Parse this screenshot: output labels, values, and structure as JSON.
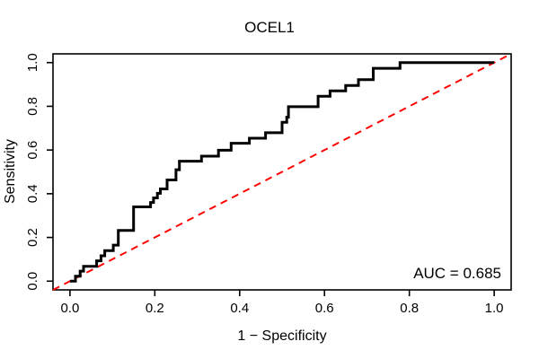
{
  "title": "OCEL1",
  "chart_data": {
    "type": "line",
    "subtype": "roc-step-curve",
    "title": "OCEL1",
    "xlabel": "1 − Specificity",
    "ylabel": "Sensitivity",
    "xlim": [
      -0.04,
      1.04
    ],
    "ylim": [
      -0.04,
      1.04
    ],
    "x_ticks": [
      0,
      0.2,
      0.4,
      0.6,
      0.8,
      1
    ],
    "y_ticks": [
      0,
      0.2,
      0.4,
      0.6,
      0.8,
      1
    ],
    "x_tick_labels": [
      "0.0",
      "0.2",
      "0.4",
      "0.6",
      "0.8",
      "1.0"
    ],
    "y_tick_labels": [
      "0.0",
      "0.2",
      "0.4",
      "0.6",
      "0.8",
      "1.0"
    ],
    "grid": false,
    "legend": "none",
    "annotation": {
      "text": "AUC = 0.685",
      "position": "bottom-right"
    },
    "auc": 0.685,
    "colors": {
      "curve": "#000000",
      "diagonal": "#FF0000",
      "axis": "#000000",
      "background": "#FFFFFF"
    },
    "series": [
      {
        "name": "roc-curve",
        "color": "#000000",
        "line_style": "solid",
        "line_width": 3,
        "points": [
          [
            0.0,
            0.0
          ],
          [
            0.013,
            0.0
          ],
          [
            0.013,
            0.023
          ],
          [
            0.024,
            0.023
          ],
          [
            0.024,
            0.046
          ],
          [
            0.032,
            0.046
          ],
          [
            0.032,
            0.068
          ],
          [
            0.063,
            0.068
          ],
          [
            0.063,
            0.093
          ],
          [
            0.073,
            0.093
          ],
          [
            0.073,
            0.116
          ],
          [
            0.082,
            0.116
          ],
          [
            0.082,
            0.14
          ],
          [
            0.102,
            0.14
          ],
          [
            0.102,
            0.165
          ],
          [
            0.114,
            0.165
          ],
          [
            0.114,
            0.232
          ],
          [
            0.15,
            0.232
          ],
          [
            0.15,
            0.34
          ],
          [
            0.19,
            0.34
          ],
          [
            0.19,
            0.36
          ],
          [
            0.197,
            0.36
          ],
          [
            0.197,
            0.381
          ],
          [
            0.206,
            0.381
          ],
          [
            0.206,
            0.402
          ],
          [
            0.213,
            0.402
          ],
          [
            0.213,
            0.422
          ],
          [
            0.229,
            0.422
          ],
          [
            0.229,
            0.463
          ],
          [
            0.25,
            0.463
          ],
          [
            0.25,
            0.51
          ],
          [
            0.258,
            0.51
          ],
          [
            0.258,
            0.549
          ],
          [
            0.31,
            0.549
          ],
          [
            0.31,
            0.572
          ],
          [
            0.35,
            0.572
          ],
          [
            0.35,
            0.599
          ],
          [
            0.38,
            0.599
          ],
          [
            0.38,
            0.631
          ],
          [
            0.423,
            0.631
          ],
          [
            0.423,
            0.654
          ],
          [
            0.461,
            0.654
          ],
          [
            0.461,
            0.679
          ],
          [
            0.5,
            0.679
          ],
          [
            0.5,
            0.727
          ],
          [
            0.511,
            0.727
          ],
          [
            0.511,
            0.75
          ],
          [
            0.515,
            0.75
          ],
          [
            0.515,
            0.798
          ],
          [
            0.585,
            0.798
          ],
          [
            0.585,
            0.846
          ],
          [
            0.613,
            0.846
          ],
          [
            0.613,
            0.871
          ],
          [
            0.65,
            0.871
          ],
          [
            0.65,
            0.895
          ],
          [
            0.68,
            0.895
          ],
          [
            0.68,
            0.922
          ],
          [
            0.715,
            0.922
          ],
          [
            0.715,
            0.974
          ],
          [
            0.778,
            0.974
          ],
          [
            0.778,
            1.0
          ],
          [
            1.0,
            1.0
          ]
        ]
      },
      {
        "name": "chance-diagonal",
        "color": "#FF0000",
        "line_style": "dashed",
        "line_width": 2,
        "points": [
          [
            -0.04,
            -0.04
          ],
          [
            1.04,
            1.04
          ]
        ]
      }
    ]
  }
}
